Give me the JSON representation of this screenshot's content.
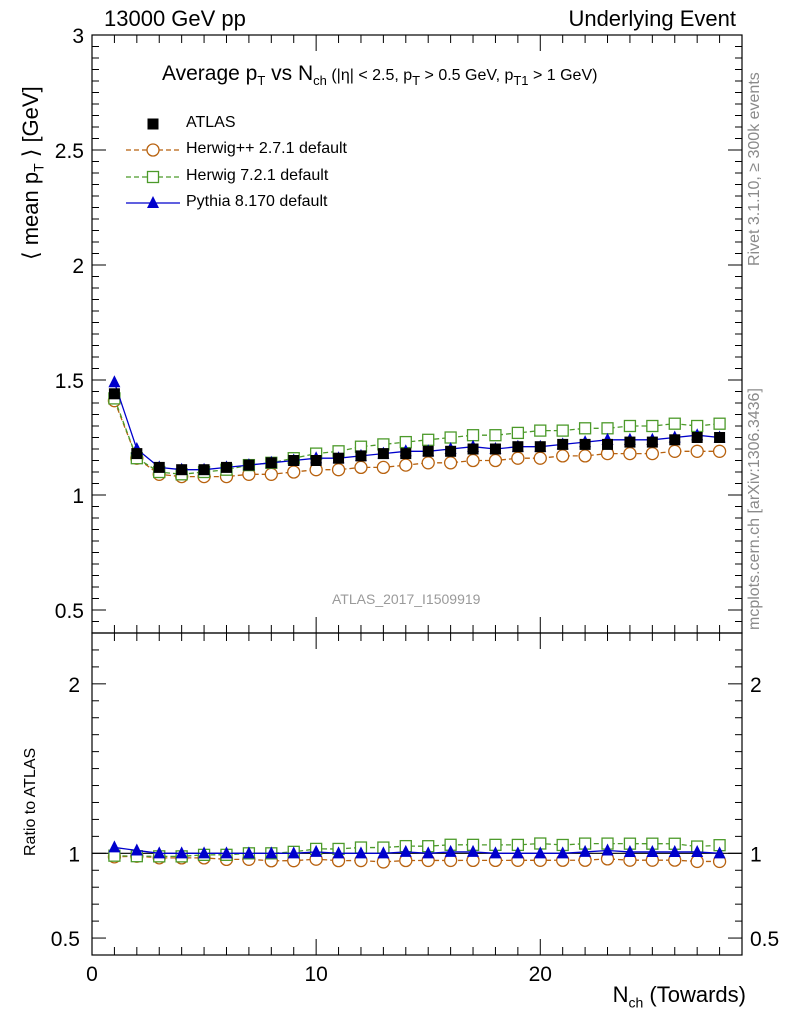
{
  "header": {
    "left": "13000 GeV pp",
    "right": "Underlying Event"
  },
  "title": {
    "prefix": "Average p",
    "sub1": "T",
    "mid": " vs N",
    "sub2": "ch",
    "cuts": " (|η| < 2.5, p",
    "sub3": "T",
    "cuts2": " > 0.5 GeV, p",
    "sub4": "T1",
    "cuts3": " > 1 GeV)"
  },
  "ylabel": {
    "prefix": "⟨ mean p",
    "sub": "T",
    "suffix": " ⟩ [GeV]"
  },
  "ratio_ylabel": "Ratio to ATLAS",
  "xlabel": {
    "prefix": "N",
    "sub": "ch",
    "suffix": " (Towards)"
  },
  "side": {
    "rivet": "Rivet 3.1.10, ≥ 300k events",
    "mcplots": "mcplots.cern.ch [arXiv:1306.3436]"
  },
  "analysis_id": "ATLAS_2017_I1509919",
  "legend": [
    {
      "label": "ATLAS",
      "color": "#000000",
      "marker": "filled-square",
      "line": "none"
    },
    {
      "label": "Herwig++ 2.7.1 default",
      "color": "#b8620f",
      "marker": "open-circle",
      "line": "dashed"
    },
    {
      "label": "Herwig 7.2.1 default",
      "color": "#4c9a2a",
      "marker": "open-square",
      "line": "dashed"
    },
    {
      "label": "Pythia 8.170 default",
      "color": "#0000cc",
      "marker": "filled-triangle",
      "line": "solid"
    }
  ],
  "chart_data": {
    "type": "line",
    "x": [
      1,
      2,
      3,
      4,
      5,
      6,
      7,
      8,
      9,
      10,
      11,
      12,
      13,
      14,
      15,
      16,
      17,
      18,
      19,
      20,
      21,
      22,
      23,
      24,
      25,
      26,
      27,
      28
    ],
    "xlim": [
      0,
      29
    ],
    "ylim": [
      0.4,
      3.0
    ],
    "y_ticks": [
      0.5,
      1,
      1.5,
      2,
      2.5,
      3
    ],
    "y_tick_labels": [
      "0.5",
      "1",
      "1.5",
      "2",
      "2.5",
      "3"
    ],
    "x_ticks": [
      0,
      10,
      20
    ],
    "x_tick_labels": [
      "0",
      "10",
      "20"
    ],
    "ratio_ylim": [
      0.4,
      2.3
    ],
    "ratio_ticks": [
      0.5,
      1,
      2
    ],
    "ratio_tick_labels": [
      "0.5",
      "1",
      "2"
    ],
    "series": [
      {
        "name": "ATLAS",
        "color": "#000000",
        "values": [
          1.44,
          1.18,
          1.12,
          1.11,
          1.11,
          1.12,
          1.13,
          1.14,
          1.15,
          1.15,
          1.16,
          1.17,
          1.18,
          1.18,
          1.19,
          1.19,
          1.2,
          1.2,
          1.21,
          1.21,
          1.22,
          1.22,
          1.22,
          1.23,
          1.23,
          1.24,
          1.25,
          1.25
        ]
      },
      {
        "name": "Herwig++ 2.7.1 default",
        "color": "#b8620f",
        "values": [
          1.41,
          1.16,
          1.09,
          1.08,
          1.08,
          1.08,
          1.09,
          1.09,
          1.1,
          1.11,
          1.11,
          1.12,
          1.12,
          1.13,
          1.14,
          1.14,
          1.15,
          1.15,
          1.16,
          1.16,
          1.17,
          1.17,
          1.18,
          1.18,
          1.18,
          1.19,
          1.19,
          1.19
        ]
      },
      {
        "name": "Herwig 7.2.1 default",
        "color": "#4c9a2a",
        "values": [
          1.42,
          1.16,
          1.1,
          1.09,
          1.1,
          1.11,
          1.13,
          1.14,
          1.16,
          1.18,
          1.19,
          1.21,
          1.22,
          1.23,
          1.24,
          1.25,
          1.26,
          1.26,
          1.27,
          1.28,
          1.28,
          1.29,
          1.29,
          1.3,
          1.3,
          1.31,
          1.3,
          1.31
        ]
      },
      {
        "name": "Pythia 8.170 default",
        "color": "#0000cc",
        "values": [
          1.49,
          1.2,
          1.12,
          1.11,
          1.11,
          1.12,
          1.13,
          1.14,
          1.15,
          1.16,
          1.16,
          1.17,
          1.18,
          1.19,
          1.19,
          1.2,
          1.21,
          1.2,
          1.21,
          1.21,
          1.22,
          1.23,
          1.24,
          1.24,
          1.24,
          1.25,
          1.26,
          1.25
        ]
      }
    ]
  }
}
